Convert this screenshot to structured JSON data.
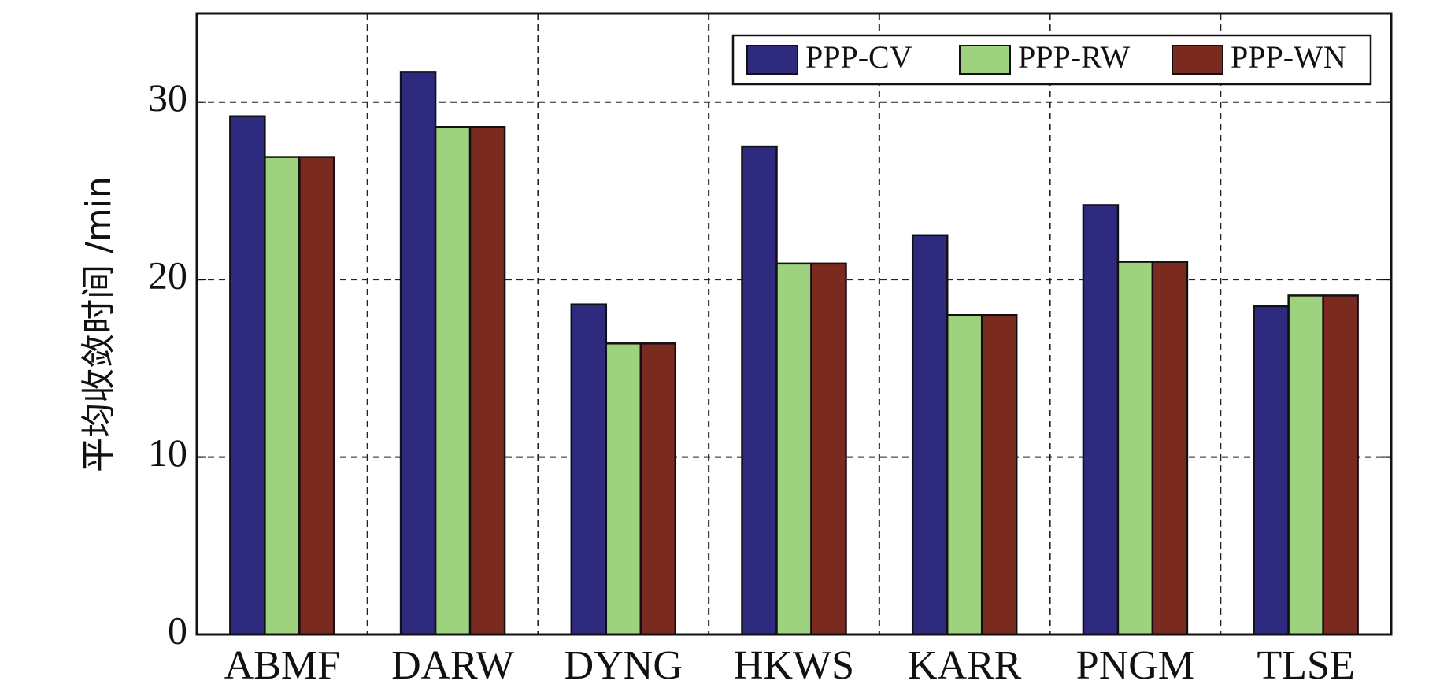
{
  "chart_data": {
    "type": "bar",
    "title": "",
    "xlabel": "",
    "ylabel": "平均收敛时间 /min",
    "ylim": [
      0,
      35
    ],
    "yticks": [
      0,
      10,
      20,
      30
    ],
    "grid": true,
    "legend_position": "top-right",
    "categories": [
      "ABMF",
      "DARW",
      "DYNG",
      "HKWS",
      "KARR",
      "PNGM",
      "TLSE"
    ],
    "series": [
      {
        "name": "PPP-CV",
        "color": "#2e2a80",
        "values": [
          29.2,
          31.7,
          18.6,
          27.5,
          22.5,
          24.2,
          18.5
        ]
      },
      {
        "name": "PPP-RW",
        "color": "#9fd27e",
        "values": [
          26.9,
          28.6,
          16.4,
          20.9,
          18.0,
          21.0,
          19.1
        ]
      },
      {
        "name": "PPP-WN",
        "color": "#7b2a20",
        "values": [
          26.9,
          28.6,
          16.4,
          20.9,
          18.0,
          21.0,
          19.1
        ]
      }
    ]
  }
}
